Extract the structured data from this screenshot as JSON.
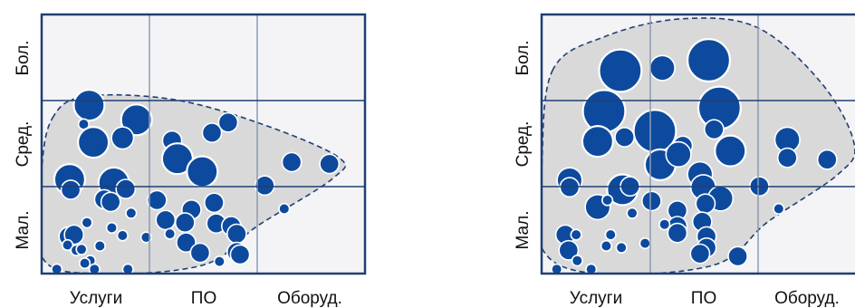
{
  "colors": {
    "panel_background": "#f4f4f6",
    "blob_fill": "#d9d9d9",
    "blob_stroke": "#1f3f73",
    "grid_border": "#1f3f73",
    "grid_inner": "#8c9bb3",
    "bubble_fill": "#0d4a9e",
    "bubble_stroke": "#ffffff"
  },
  "chart_data": [
    {
      "type": "scatter",
      "subtype": "bubble-matrix",
      "x_categories": [
        "Услуги",
        "ПО",
        "Оборуд."
      ],
      "y_categories": [
        "Мал.",
        "Сред.",
        "Бол."
      ],
      "grid": true,
      "x_range": [
        0,
        3
      ],
      "y_range": [
        0,
        3
      ],
      "region_outline": [
        [
          0.1,
          1.8
        ],
        [
          0.4,
          2.05
        ],
        [
          1.2,
          2.02
        ],
        [
          2.0,
          1.75
        ],
        [
          2.75,
          1.35
        ],
        [
          2.7,
          1.1
        ],
        [
          2.0,
          0.55
        ],
        [
          1.5,
          0.1
        ],
        [
          0.5,
          0.0
        ],
        [
          0.0,
          0.2
        ],
        [
          0.0,
          1.2
        ]
      ],
      "points": [
        {
          "x": 0.44,
          "y": 1.95,
          "size": 10
        },
        {
          "x": 0.39,
          "y": 1.73,
          "size": 3
        },
        {
          "x": 0.88,
          "y": 1.78,
          "size": 10
        },
        {
          "x": 0.48,
          "y": 1.52,
          "size": 10
        },
        {
          "x": 0.75,
          "y": 1.57,
          "size": 7
        },
        {
          "x": 1.73,
          "y": 1.75,
          "size": 6
        },
        {
          "x": 1.58,
          "y": 1.63,
          "size": 6
        },
        {
          "x": 1.21,
          "y": 1.54,
          "size": 6
        },
        {
          "x": 1.26,
          "y": 1.33,
          "size": 10
        },
        {
          "x": 1.49,
          "y": 1.18,
          "size": 10
        },
        {
          "x": 2.32,
          "y": 1.29,
          "size": 6
        },
        {
          "x": 2.67,
          "y": 1.27,
          "size": 6
        },
        {
          "x": 0.26,
          "y": 1.09,
          "size": 10
        },
        {
          "x": 0.27,
          "y": 0.97,
          "size": 6
        },
        {
          "x": 0.67,
          "y": 1.05,
          "size": 10
        },
        {
          "x": 0.78,
          "y": 0.98,
          "size": 6
        },
        {
          "x": 0.58,
          "y": 0.86,
          "size": 6
        },
        {
          "x": 0.64,
          "y": 0.83,
          "size": 6
        },
        {
          "x": 1.07,
          "y": 0.85,
          "size": 6
        },
        {
          "x": 2.07,
          "y": 1.02,
          "size": 6
        },
        {
          "x": 1.6,
          "y": 0.82,
          "size": 6
        },
        {
          "x": 2.25,
          "y": 0.75,
          "size": 3
        },
        {
          "x": 0.83,
          "y": 0.7,
          "size": 3
        },
        {
          "x": 1.15,
          "y": 0.62,
          "size": 6
        },
        {
          "x": 1.39,
          "y": 0.74,
          "size": 6
        },
        {
          "x": 1.62,
          "y": 0.58,
          "size": 6
        },
        {
          "x": 1.76,
          "y": 0.55,
          "size": 6
        },
        {
          "x": 0.42,
          "y": 0.59,
          "size": 3
        },
        {
          "x": 0.65,
          "y": 0.53,
          "size": 3
        },
        {
          "x": 1.33,
          "y": 0.59,
          "size": 6
        },
        {
          "x": 1.81,
          "y": 0.46,
          "size": 6
        },
        {
          "x": 0.25,
          "y": 0.43,
          "size": 6
        },
        {
          "x": 0.3,
          "y": 0.45,
          "size": 6
        },
        {
          "x": 0.75,
          "y": 0.44,
          "size": 3
        },
        {
          "x": 0.97,
          "y": 0.42,
          "size": 3
        },
        {
          "x": 0.54,
          "y": 0.32,
          "size": 3
        },
        {
          "x": 0.24,
          "y": 0.33,
          "size": 3
        },
        {
          "x": 1.19,
          "y": 0.46,
          "size": 3
        },
        {
          "x": 1.34,
          "y": 0.36,
          "size": 6
        },
        {
          "x": 1.47,
          "y": 0.24,
          "size": 6
        },
        {
          "x": 0.32,
          "y": 0.27,
          "size": 3
        },
        {
          "x": 0.37,
          "y": 0.28,
          "size": 3
        },
        {
          "x": 1.81,
          "y": 0.25,
          "size": 6
        },
        {
          "x": 1.84,
          "y": 0.22,
          "size": 6
        },
        {
          "x": 0.45,
          "y": 0.15,
          "size": 3
        },
        {
          "x": 1.65,
          "y": 0.14,
          "size": 3
        },
        {
          "x": 0.4,
          "y": 0.12,
          "size": 3
        },
        {
          "x": 0.14,
          "y": 0.05,
          "size": 3
        },
        {
          "x": 0.49,
          "y": 0.05,
          "size": 3
        },
        {
          "x": 0.8,
          "y": 0.05,
          "size": 3
        }
      ]
    },
    {
      "type": "scatter",
      "subtype": "bubble-matrix",
      "x_categories": [
        "Услуги",
        "ПО",
        "Оборуд."
      ],
      "y_categories": [
        "Мал.",
        "Сред.",
        "Бол."
      ],
      "grid": true,
      "x_range": [
        0,
        3
      ],
      "y_range": [
        0,
        3
      ],
      "region_outline": [
        [
          0.1,
          2.35
        ],
        [
          0.6,
          2.75
        ],
        [
          1.3,
          2.95
        ],
        [
          2.0,
          2.85
        ],
        [
          2.6,
          2.2
        ],
        [
          2.9,
          1.5
        ],
        [
          2.75,
          1.15
        ],
        [
          2.1,
          0.6
        ],
        [
          1.6,
          0.1
        ],
        [
          0.5,
          0.0
        ],
        [
          0.0,
          0.3
        ],
        [
          0.0,
          1.2
        ]
      ],
      "points": [
        {
          "x": 0.73,
          "y": 2.35,
          "size": 14
        },
        {
          "x": 1.12,
          "y": 2.38,
          "size": 8
        },
        {
          "x": 1.55,
          "y": 2.47,
          "size": 14
        },
        {
          "x": 0.58,
          "y": 1.88,
          "size": 14
        },
        {
          "x": 1.65,
          "y": 1.92,
          "size": 14
        },
        {
          "x": 1.05,
          "y": 1.65,
          "size": 14
        },
        {
          "x": 0.52,
          "y": 1.53,
          "size": 10
        },
        {
          "x": 0.77,
          "y": 1.58,
          "size": 6
        },
        {
          "x": 1.31,
          "y": 1.48,
          "size": 6
        },
        {
          "x": 1.6,
          "y": 1.67,
          "size": 6
        },
        {
          "x": 1.75,
          "y": 1.42,
          "size": 10
        },
        {
          "x": 1.1,
          "y": 1.26,
          "size": 10
        },
        {
          "x": 1.27,
          "y": 1.38,
          "size": 8
        },
        {
          "x": 2.28,
          "y": 1.55,
          "size": 8
        },
        {
          "x": 2.28,
          "y": 1.34,
          "size": 6
        },
        {
          "x": 2.65,
          "y": 1.32,
          "size": 6
        },
        {
          "x": 0.26,
          "y": 1.08,
          "size": 8
        },
        {
          "x": 0.26,
          "y": 1.0,
          "size": 6
        },
        {
          "x": 0.75,
          "y": 0.97,
          "size": 10
        },
        {
          "x": 0.82,
          "y": 1.01,
          "size": 6
        },
        {
          "x": 1.47,
          "y": 1.15,
          "size": 8
        },
        {
          "x": 1.5,
          "y": 1.0,
          "size": 8
        },
        {
          "x": 2.02,
          "y": 1.01,
          "size": 6
        },
        {
          "x": 0.52,
          "y": 0.77,
          "size": 8
        },
        {
          "x": 0.61,
          "y": 0.85,
          "size": 3
        },
        {
          "x": 1.02,
          "y": 0.84,
          "size": 6
        },
        {
          "x": 1.66,
          "y": 0.87,
          "size": 8
        },
        {
          "x": 1.52,
          "y": 0.81,
          "size": 6
        },
        {
          "x": 2.2,
          "y": 0.75,
          "size": 3
        },
        {
          "x": 0.84,
          "y": 0.7,
          "size": 3
        },
        {
          "x": 1.26,
          "y": 0.73,
          "size": 6
        },
        {
          "x": 1.49,
          "y": 0.6,
          "size": 6
        },
        {
          "x": 1.26,
          "y": 0.55,
          "size": 6
        },
        {
          "x": 1.53,
          "y": 0.43,
          "size": 6
        },
        {
          "x": 1.14,
          "y": 0.57,
          "size": 3
        },
        {
          "x": 1.26,
          "y": 0.47,
          "size": 6
        },
        {
          "x": 0.22,
          "y": 0.45,
          "size": 6
        },
        {
          "x": 0.32,
          "y": 0.45,
          "size": 3
        },
        {
          "x": 0.64,
          "y": 0.45,
          "size": 3
        },
        {
          "x": 0.96,
          "y": 0.35,
          "size": 3
        },
        {
          "x": 0.25,
          "y": 0.27,
          "size": 6
        },
        {
          "x": 0.6,
          "y": 0.32,
          "size": 3
        },
        {
          "x": 0.74,
          "y": 0.3,
          "size": 3
        },
        {
          "x": 1.53,
          "y": 0.3,
          "size": 6
        },
        {
          "x": 1.47,
          "y": 0.23,
          "size": 6
        },
        {
          "x": 1.82,
          "y": 0.2,
          "size": 6
        },
        {
          "x": 0.33,
          "y": 0.15,
          "size": 3
        },
        {
          "x": 0.14,
          "y": 0.05,
          "size": 3
        },
        {
          "x": 0.46,
          "y": 0.05,
          "size": 3
        }
      ]
    }
  ]
}
